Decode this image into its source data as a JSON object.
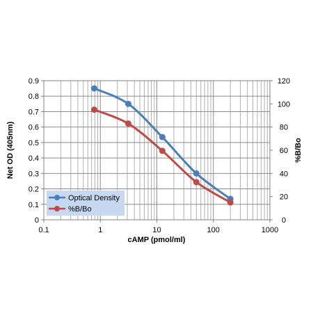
{
  "chart_data": {
    "type": "line",
    "xlabel": "cAMP (pmol/ml)",
    "ylabel": "Net OD (405nm)",
    "y2label": "%B/Bo",
    "x_scale": "log",
    "xlim": [
      0.1,
      1000
    ],
    "ylim": [
      0,
      0.9
    ],
    "y2lim": [
      0,
      120
    ],
    "x_ticks": [
      "0.1",
      "1",
      "10",
      "100",
      "1000"
    ],
    "y_ticks": [
      "0",
      "0.1",
      "0.2",
      "0.3",
      "0.4",
      "0.5",
      "0.6",
      "0.7",
      "0.8",
      "0.9"
    ],
    "y2_ticks": [
      "0",
      "20",
      "40",
      "60",
      "80",
      "100",
      "120"
    ],
    "grid": "major and minor vertical, major horizontal",
    "legend_position": "bottom-left",
    "series": [
      {
        "name": "Optical Density",
        "axis": "left",
        "color": "#4a7ebb",
        "x": [
          0.78,
          3.125,
          12.5,
          50,
          200
        ],
        "y": [
          0.85,
          0.75,
          0.535,
          0.3,
          0.135
        ]
      },
      {
        "name": "%B/Bo",
        "axis": "right",
        "color": "#be4b48",
        "x": [
          0.78,
          3.125,
          12.5,
          50,
          200
        ],
        "y": [
          95,
          83,
          59.5,
          32.5,
          15
        ]
      }
    ]
  }
}
